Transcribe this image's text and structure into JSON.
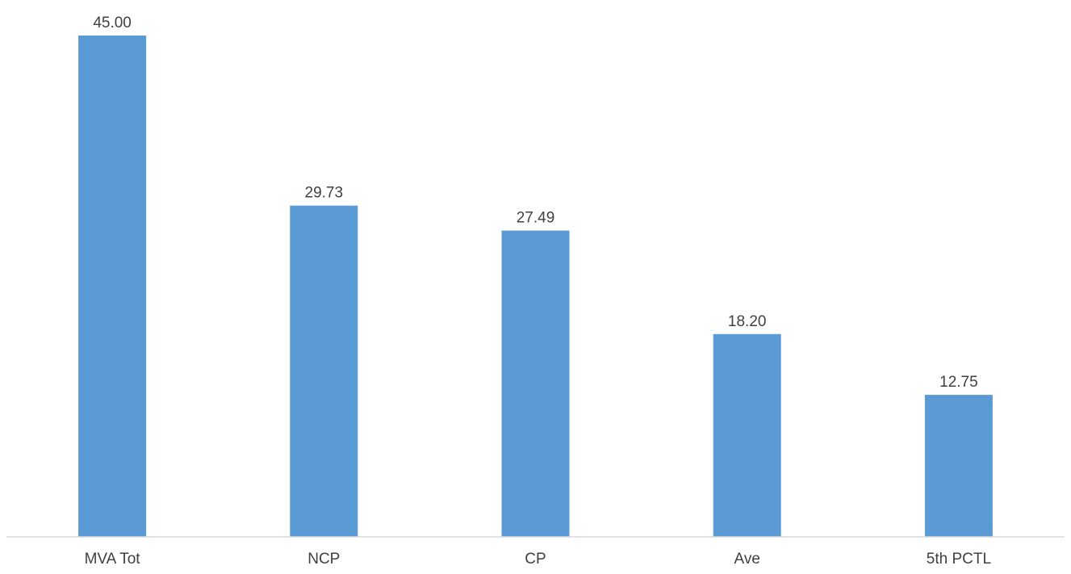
{
  "chart_data": {
    "type": "bar",
    "categories": [
      "MVA Tot",
      "NCP",
      "CP",
      "Ave",
      "5th PCTL"
    ],
    "values": [
      45.0,
      29.73,
      27.49,
      18.2,
      12.75
    ],
    "data_labels": [
      "45.00",
      "29.73",
      "27.49",
      "18.20",
      "12.75"
    ],
    "title": "",
    "xlabel": "",
    "ylabel": "",
    "ylim": [
      0,
      45
    ],
    "grid": false,
    "legend": "none",
    "bar_color": "#5b9bd5",
    "axis_color": "#d9d9d9",
    "text_color": "#404040"
  }
}
